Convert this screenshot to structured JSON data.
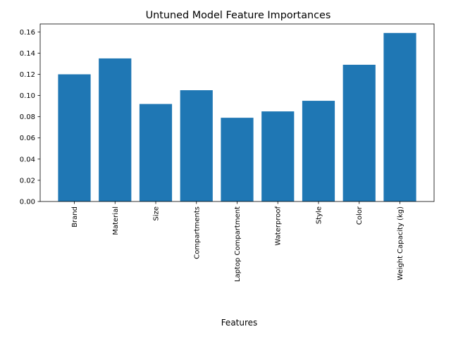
{
  "chart_data": {
    "type": "bar",
    "title": "Untuned Model Feature Importances",
    "xlabel": "Features",
    "ylabel": "",
    "categories": [
      "Brand",
      "Material",
      "Size",
      "Compartments",
      "Laptop Compartment",
      "Waterproof",
      "Style",
      "Color",
      "Weight Capacity (kg)"
    ],
    "values": [
      0.12,
      0.135,
      0.092,
      0.105,
      0.079,
      0.085,
      0.095,
      0.129,
      0.159
    ],
    "ylim": [
      0,
      0.1675
    ],
    "yticks": [
      "0.00",
      "0.02",
      "0.04",
      "0.06",
      "0.08",
      "0.10",
      "0.12",
      "0.14",
      "0.16"
    ],
    "bar_color": "#1f77b4",
    "grid": false,
    "legend": "none"
  }
}
